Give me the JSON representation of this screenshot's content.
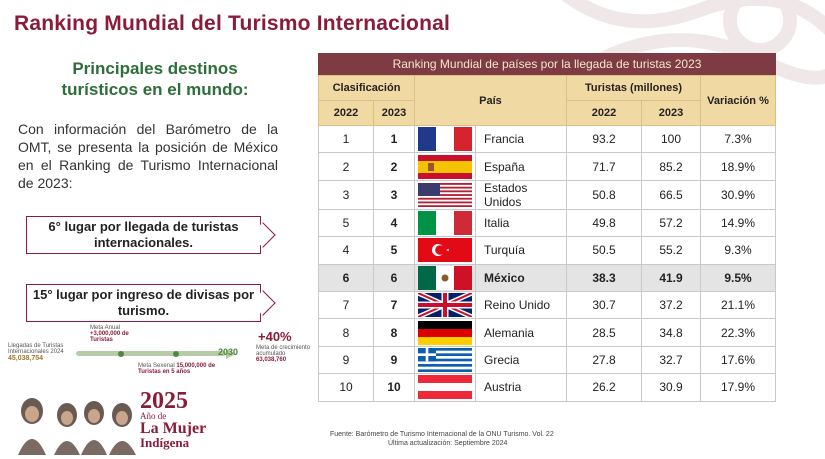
{
  "slide": {
    "title": "Ranking Mundial del Turismo Internacional",
    "subtitle": "Principales destinos turísticos en el mundo:",
    "intro": "Con información del Barómetro de la OMT, se presenta la posición de México en el Ranking de Turismo Internacional de 2023:",
    "callout_arrivals": "6° lugar por llegada de turistas internacionales.",
    "callout_revenue": "15° lugar por ingreso de divisas por turismo."
  },
  "goal_graphic": {
    "arrivals_label": "Llegadas de Turistas Internacionales 2024",
    "arrivals_value": "45,038,754",
    "annual_goal_label": "Meta Anual",
    "annual_goal_value": "+3,000,000 de Turistas",
    "sexennial_goal_label": "Meta Sexenal",
    "sexennial_goal_value": "15,000,000 de Turistas en 5 años",
    "year": "2030",
    "growth_pct": "+40%",
    "growth_label": "Meta de crecimiento acumulado",
    "growth_value": "63,038,760"
  },
  "logo": {
    "year": "2025",
    "line1": "Año de",
    "line2": "La Mujer",
    "line3": "Indígena"
  },
  "table": {
    "title": "Ranking Mundial de países por la llegada de turistas 2023",
    "headers": {
      "classification": "Clasificación",
      "country": "País",
      "tourists": "Turistas (millones)",
      "variation": "Variación %",
      "y2022": "2022",
      "y2023": "2023"
    },
    "rows": [
      {
        "r2022": "1",
        "r2023": "1",
        "flag": "france-flag",
        "country": "Francia",
        "t2022": "93.2",
        "t2023": "100",
        "var": "7.3%"
      },
      {
        "r2022": "2",
        "r2023": "2",
        "flag": "spain-flag",
        "country": "España",
        "t2022": "71.7",
        "t2023": "85.2",
        "var": "18.9%"
      },
      {
        "r2022": "3",
        "r2023": "3",
        "flag": "usa-flag",
        "country": "Estados Unidos",
        "t2022": "50.8",
        "t2023": "66.5",
        "var": "30.9%"
      },
      {
        "r2022": "5",
        "r2023": "4",
        "flag": "italy-flag",
        "country": "Italia",
        "t2022": "49.8",
        "t2023": "57.2",
        "var": "14.9%"
      },
      {
        "r2022": "4",
        "r2023": "5",
        "flag": "turkey-flag",
        "country": "Turquía",
        "t2022": "50.5",
        "t2023": "55.2",
        "var": "9.3%"
      },
      {
        "r2022": "6",
        "r2023": "6",
        "flag": "mexico-flag",
        "country": "México",
        "t2022": "38.3",
        "t2023": "41.9",
        "var": "9.5%"
      },
      {
        "r2022": "7",
        "r2023": "7",
        "flag": "uk-flag",
        "country": "Reino Unido",
        "t2022": "30.7",
        "t2023": "37.2",
        "var": "21.1%"
      },
      {
        "r2022": "8",
        "r2023": "8",
        "flag": "germany-flag",
        "country": "Alemania",
        "t2022": "28.5",
        "t2023": "34.8",
        "var": "22.3%"
      },
      {
        "r2022": "9",
        "r2023": "9",
        "flag": "greece-flag",
        "country": "Grecia",
        "t2022": "27.8",
        "t2023": "32.7",
        "var": "17.6%"
      },
      {
        "r2022": "10",
        "r2023": "10",
        "flag": "austria-flag",
        "country": "Austria",
        "t2022": "26.2",
        "t2023": "30.9",
        "var": "17.9%"
      }
    ]
  },
  "footnote": {
    "source": "Fuente: Barómetro de Turismo Internacional de la ONU Turismo. Vol. 22",
    "updated": "Última actualización: Septiembre 2024"
  },
  "colors": {
    "brand": "#8a1c3a",
    "green": "#2e6e3a",
    "table_header": "#7e3b44",
    "subheader": "#f1d9a3"
  }
}
